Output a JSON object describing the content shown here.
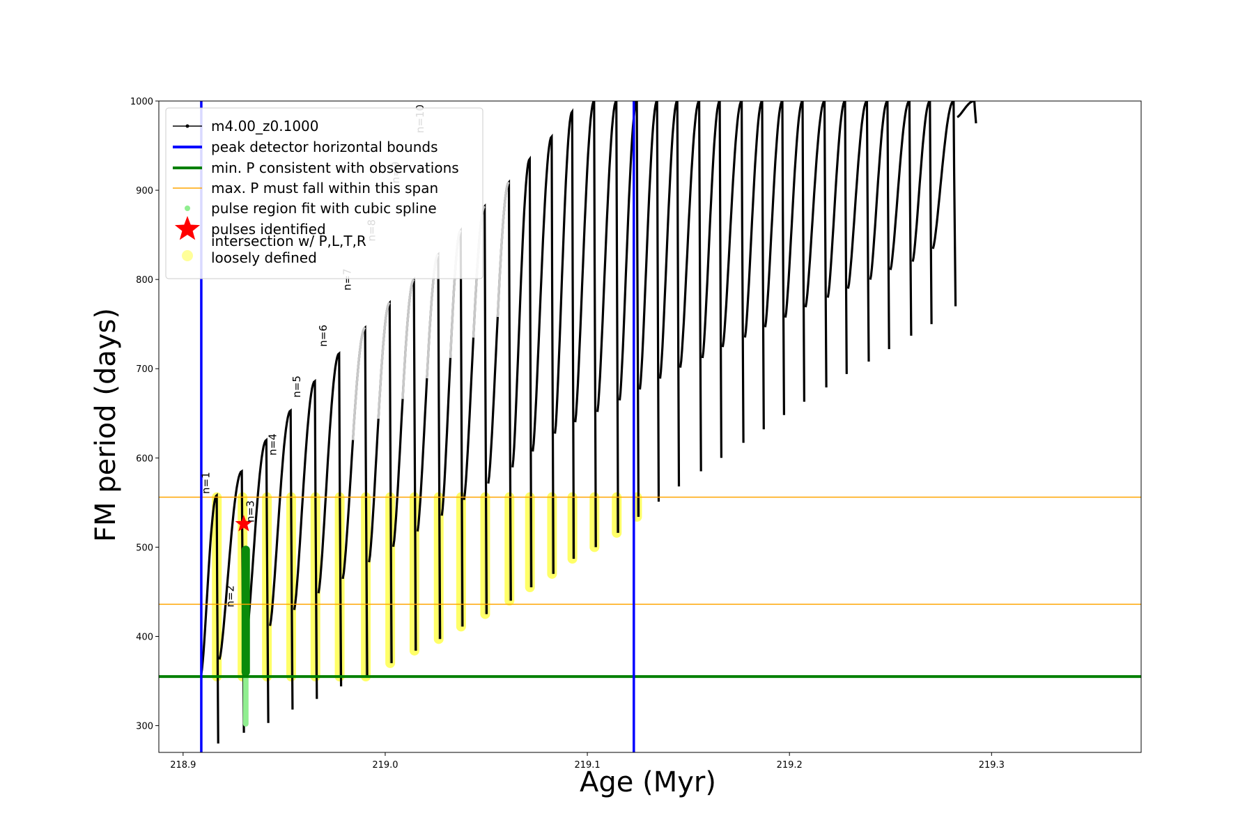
{
  "chart_data": {
    "type": "line",
    "title": "",
    "xlabel": "Age (Myr)",
    "ylabel": "FM period (days)",
    "xlim": [
      218.888,
      219.374
    ],
    "ylim": [
      270,
      1000
    ],
    "xticks": [
      218.9,
      219.0,
      219.1,
      219.2,
      219.3
    ],
    "xtick_labels": [
      "218.9",
      "219.0",
      "219.1",
      "219.2",
      "219.3"
    ],
    "yticks": [
      300,
      400,
      500,
      600,
      700,
      800,
      900,
      1000
    ],
    "ytick_labels": [
      "300",
      "400",
      "500",
      "600",
      "700",
      "800",
      "900",
      "1000"
    ],
    "grid": false,
    "legend_position": "top-left",
    "legend": [
      {
        "label": "m4.00_z0.1000",
        "marker": "line-dot",
        "color": "#000000"
      },
      {
        "label": "peak detector horizontal bounds",
        "marker": "thick-line",
        "color": "#0000ff"
      },
      {
        "label": "min. P consistent with observations",
        "marker": "thick-line",
        "color": "#008000"
      },
      {
        "label": "max. P must fall within this span",
        "marker": "thin-line",
        "color": "#ffa500"
      },
      {
        "label": "pulse region fit with cubic spline",
        "marker": "dot",
        "color": "#90ee90"
      },
      {
        "label": "pulses identified",
        "marker": "star",
        "color": "#ff0000"
      },
      {
        "label": "intersection w/ P,L,T,R",
        "label2": "loosely defined",
        "marker": "circle",
        "color": "#ffff99"
      }
    ],
    "reference_lines": {
      "peak_bounds_x": [
        218.909,
        219.123
      ],
      "min_period_y": 355,
      "max_period_span_y": [
        436,
        556
      ]
    },
    "pulses": {
      "series_name": "m4.00_z0.1000",
      "cycle_x_start": [
        218.909,
        218.918,
        218.931,
        218.943,
        218.955,
        218.967,
        218.979,
        218.992,
        219.004,
        219.016,
        219.028,
        219.039,
        219.051,
        219.063,
        219.073,
        219.084,
        219.094,
        219.105,
        219.116,
        219.126,
        219.136,
        219.146,
        219.157,
        219.167,
        219.178,
        219.188,
        219.198,
        219.208,
        219.219,
        219.229,
        219.24,
        219.25,
        219.261,
        219.271,
        219.283
      ],
      "cycle_peak_period": [
        558,
        585,
        620,
        653,
        686,
        717,
        746,
        774,
        800,
        828,
        855,
        882,
        909,
        935,
        960,
        988,
        1000,
        1000,
        1000,
        1000,
        1000,
        1000,
        1000,
        1000,
        1000,
        1000,
        1000,
        1000,
        1000,
        1000,
        1000,
        1000,
        1000,
        1000,
        1000
      ],
      "cycle_min_period": [
        280,
        292,
        303,
        318,
        330,
        344,
        355,
        370,
        384,
        397,
        411,
        425,
        440,
        455,
        470,
        487,
        500,
        516,
        534,
        551,
        568,
        585,
        600,
        617,
        632,
        648,
        663,
        679,
        694,
        708,
        722,
        737,
        750,
        770,
        975
      ]
    },
    "identified_pulse": {
      "x": 218.93,
      "y": 526
    },
    "spline_region": {
      "x": 218.931,
      "y_range": [
        302,
        497
      ]
    },
    "pulse_labels": [
      {
        "text": "n=1",
        "x": 218.913,
        "y": 572
      },
      {
        "text": "n=2",
        "x": 218.925,
        "y": 445
      },
      {
        "text": "n=3",
        "x": 218.935,
        "y": 540
      },
      {
        "text": "n=4",
        "x": 218.946,
        "y": 615
      },
      {
        "text": "n=5",
        "x": 218.958,
        "y": 680
      },
      {
        "text": "n=6",
        "x": 218.971,
        "y": 737
      },
      {
        "text": "n=7",
        "x": 218.983,
        "y": 800
      },
      {
        "text": "n=8",
        "x": 218.995,
        "y": 855
      },
      {
        "text": "n=9",
        "x": 219.007,
        "y": 920
      },
      {
        "text": "n=10",
        "x": 219.019,
        "y": 980
      }
    ]
  }
}
